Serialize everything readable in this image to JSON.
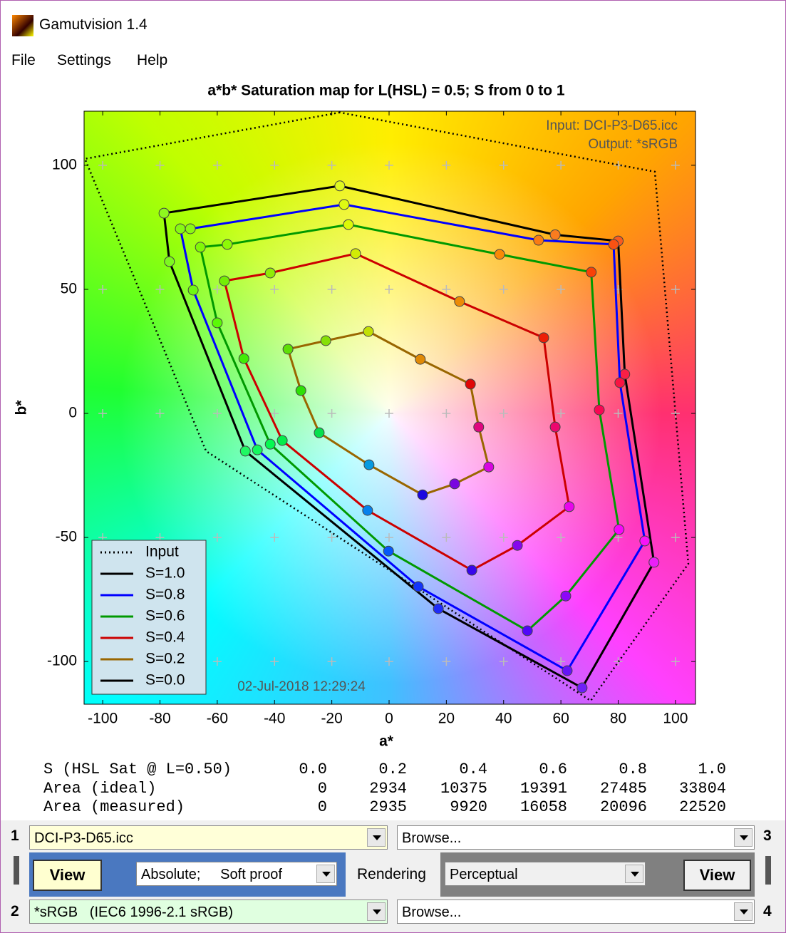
{
  "window": {
    "title": "Gamutvision 1.4",
    "menu": [
      "File",
      "Settings",
      "Help"
    ]
  },
  "chart_data": {
    "type": "line",
    "title": "a*b* Saturation map for L(HSL) = 0.5;  S from 0 to 1",
    "xlabel": "a*",
    "ylabel": "b*",
    "xlim": [
      -106.5,
      107
    ],
    "ylim": [
      -117.2,
      121.8
    ],
    "xticks": [
      -100,
      -80,
      -60,
      -40,
      -20,
      0,
      20,
      40,
      60,
      80,
      100
    ],
    "yticks": [
      -100,
      -50,
      0,
      50,
      100
    ],
    "legend": "lower left",
    "annotations": {
      "input": "Input:  DCI-P3-D65.icc",
      "output": "Output: *sRGB",
      "timestamp": "02-Jul-2018 12:29:24"
    },
    "series": [
      {
        "name": "Input",
        "color": "#000000",
        "dash": "dotted",
        "x": [
          -17.2,
          -106.2,
          -63.9,
          70.4,
          104.5,
          92.8
        ],
        "y": [
          121.3,
          102.6,
          -15.2,
          -115.8,
          -60.6,
          97.4
        ]
      },
      {
        "name": "S=1.0",
        "color": "#000000",
        "dash": "solid",
        "x": [
          -17.2,
          58,
          80,
          82.3,
          92.5,
          67.4,
          17.2,
          -50.2,
          -76.7,
          -78.6
        ],
        "y": [
          91.7,
          72,
          69.5,
          15.8,
          -60,
          -110.6,
          -78.7,
          -15.2,
          61.2,
          80.7
        ]
      },
      {
        "name": "S=0.8",
        "color": "#0000ff",
        "dash": "solid",
        "x": [
          -15.7,
          52.2,
          78.4,
          80.6,
          89.3,
          62.2,
          10.2,
          -46,
          -68.4,
          -72.9,
          -69.4
        ],
        "y": [
          84.2,
          69.8,
          68.1,
          12.4,
          -51.4,
          -103.7,
          -69.8,
          -14.7,
          49.7,
          74.4,
          74.4
        ]
      },
      {
        "name": "S=0.6",
        "color": "#009900",
        "dash": "solid",
        "x": [
          -14.2,
          38.6,
          70.6,
          73.4,
          80.3,
          61.7,
          48.3,
          -0.2,
          -41.5,
          -60,
          -65.9,
          -56.5
        ],
        "y": [
          76.1,
          64.1,
          56.9,
          1.4,
          -46.8,
          -73.6,
          -87.6,
          -55.5,
          -12.4,
          36.5,
          67,
          68.1
        ]
      },
      {
        "name": "S=0.4",
        "color": "#cc0000",
        "dash": "solid",
        "x": [
          -11.7,
          24.6,
          54,
          58,
          62.9,
          44.8,
          28.9,
          -7.5,
          -37.3,
          -50.7,
          -57.5,
          -41.5
        ],
        "y": [
          64.4,
          45.1,
          30.5,
          -5.5,
          -37.6,
          -53.2,
          -63.2,
          -39.1,
          -10.9,
          22.1,
          53.4,
          56.6
        ]
      },
      {
        "name": "S=0.2",
        "color": "#996600",
        "dash": "solid",
        "x": [
          -7.2,
          10.9,
          28.4,
          31.3,
          34.8,
          22.9,
          11.7,
          -7,
          -24.4,
          -30.8,
          -35.3,
          -22.1
        ],
        "y": [
          33,
          21.8,
          11.8,
          -5.5,
          -21.6,
          -28.4,
          -32.8,
          -20.7,
          -7.8,
          9.2,
          25.9,
          29.3
        ]
      },
      {
        "name": "S=0.0",
        "color": "#000000",
        "dash": "solid",
        "x": [
          0
        ],
        "y": [
          0
        ]
      }
    ]
  },
  "table": {
    "rows": [
      [
        "S (HSL Sat @ L=0.50)",
        "0.0",
        "0.2",
        "0.4",
        "0.6",
        "0.8",
        "1.0"
      ],
      [
        "Area (ideal)",
        0,
        2934,
        10375,
        19391,
        27485,
        33804
      ],
      [
        "Area (measured)",
        0,
        2935,
        9920,
        16058,
        20096,
        22520
      ]
    ]
  },
  "controls": {
    "row1": {
      "number": "1",
      "profile": "DCI-P3-D65.icc",
      "browse": "Browse...",
      "number2": "3"
    },
    "middle": {
      "view1": "View",
      "intent": "Absolute;     Soft proof",
      "rendering": "Rendering",
      "rendering_value": "Perceptual",
      "view2": "View"
    },
    "row2": {
      "number": "2",
      "profile": "*sRGB   (IEC6 1996-2.1 sRGB)",
      "browse": "Browse...",
      "number2": "4"
    }
  }
}
